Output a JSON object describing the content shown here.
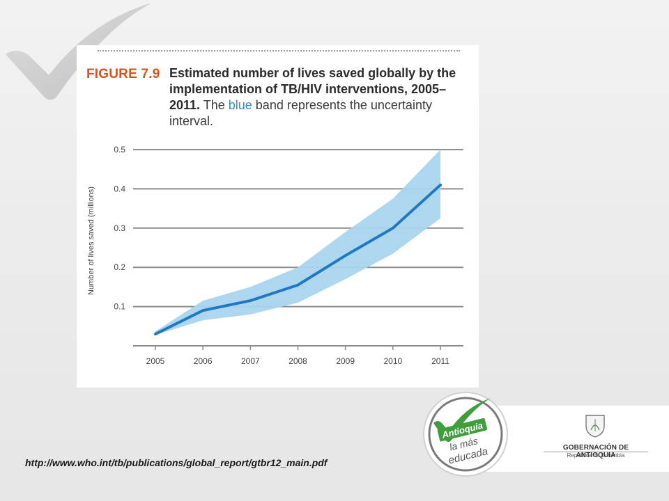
{
  "figure": {
    "label": "FIGURE 7.9",
    "caption_bold": "Estimated number of lives saved globally by the implementation of TB/HIV interventions, 2005–2011.",
    "caption_pre": " The ",
    "caption_blue": "blue",
    "caption_post": " band represents the uncertainty interval."
  },
  "chart_data": {
    "type": "line",
    "ylabel": "Number of lives saved (millions)",
    "x": [
      "2005",
      "2006",
      "2007",
      "2008",
      "2009",
      "2010",
      "2011"
    ],
    "yticks": [
      "0.1",
      "0.2",
      "0.3",
      "0.4",
      "0.5"
    ],
    "ylim": [
      0,
      0.5
    ],
    "series": [
      {
        "values": [
          0.03,
          0.09,
          0.115,
          0.155,
          0.23,
          0.3,
          0.41
        ],
        "color": "#1f78c1"
      }
    ],
    "band": {
      "lower": [
        0.028,
        0.065,
        0.08,
        0.11,
        0.17,
        0.235,
        0.325
      ],
      "upper": [
        0.037,
        0.115,
        0.15,
        0.2,
        0.29,
        0.375,
        0.5
      ],
      "color": "#a9d4ee"
    },
    "grid": true
  },
  "source": {
    "url": "http://www.who.int/tb/publications/global_report/gtbr12_main.pdf"
  },
  "badge": {
    "line1": "Antioquia",
    "line2": "la más",
    "line3": "educada",
    "color": "#3f9d3c"
  },
  "government": {
    "name": "GOBERNACIÓN DE ANTIOQUIA",
    "sub": "República de Colombia"
  }
}
